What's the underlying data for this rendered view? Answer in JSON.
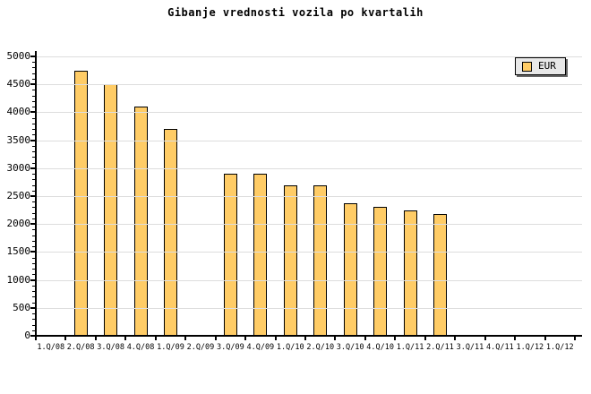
{
  "title": "Gibanje vrednosti vozila po kvartalih",
  "legend": {
    "label": "EUR"
  },
  "colors": {
    "background": "#FFFFFF",
    "bar_fill": "#FFCC66",
    "bar_border": "#000000",
    "grid": "#DDDDDD",
    "axis": "#000000",
    "text": "#000000",
    "legend_bg": "#E8E8E8",
    "legend_shadow": "#666666"
  },
  "chart_data": {
    "type": "bar",
    "title": "Gibanje vrednosti vozila po kvartalih",
    "categories": [
      "1.Q/08",
      "2.Q/08",
      "3.Q/08",
      "4.Q/08",
      "1.Q/09",
      "2.Q/09",
      "3.Q/09",
      "4.Q/09",
      "1.Q/10",
      "2.Q/10",
      "3.Q/10",
      "4.Q/10",
      "1.Q/11",
      "2.Q/11",
      "3.Q/11",
      "4.Q/11",
      "1.Q/12",
      "1.Q/12"
    ],
    "series": [
      {
        "name": "EUR",
        "values": [
          null,
          4750,
          4500,
          4100,
          3700,
          null,
          2900,
          2900,
          2700,
          2700,
          2370,
          2310,
          2250,
          2180,
          null,
          null,
          null,
          null
        ]
      }
    ],
    "xlabel": "",
    "ylabel": "",
    "ylim": [
      0,
      5000
    ],
    "ytick_step": 500,
    "y_minor_tick_step": 100,
    "grid": "horizontal",
    "legend_position": "top-right",
    "legend_entries": [
      "EUR"
    ]
  }
}
